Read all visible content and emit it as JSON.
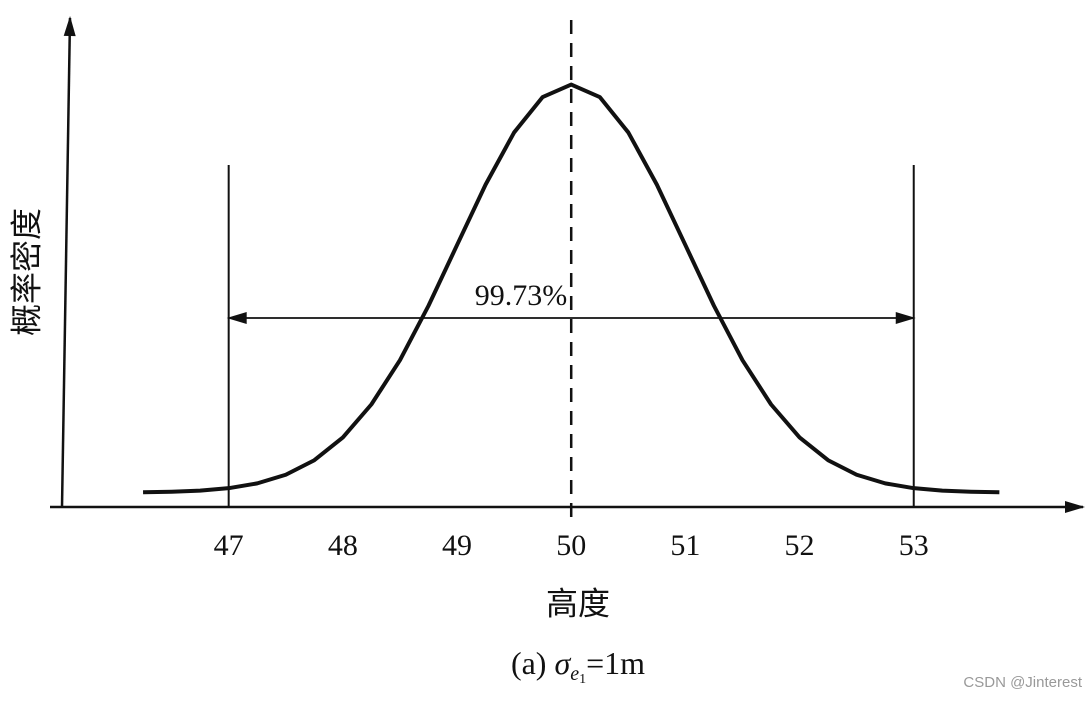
{
  "chart_data": {
    "type": "line",
    "x": [
      46.25,
      46.5,
      46.75,
      47,
      47.25,
      47.5,
      47.75,
      48,
      48.25,
      48.5,
      48.75,
      49,
      49.25,
      49.5,
      49.75,
      50,
      50.25,
      50.5,
      50.75,
      51,
      51.25,
      51.5,
      51.75,
      52,
      52.25,
      52.5,
      52.75,
      53,
      53.25,
      53.5,
      53.75
    ],
    "series": [
      {
        "color": "#111111",
        "values": [
          0.0004,
          0.0009,
          0.002,
          0.0044,
          0.0091,
          0.0175,
          0.0317,
          0.054,
          0.0863,
          0.1295,
          0.1827,
          0.242,
          0.3011,
          0.3521,
          0.3867,
          0.3989,
          0.3867,
          0.3521,
          0.3011,
          0.242,
          0.1827,
          0.1295,
          0.0863,
          0.054,
          0.0317,
          0.0175,
          0.0091,
          0.0044,
          0.002,
          0.0009,
          0.0004
        ]
      }
    ],
    "xlim": [
      45.4,
      54.5
    ],
    "ylim": [
      -0.014,
      0.462
    ],
    "xticks": [
      47,
      48,
      49,
      50,
      51,
      52,
      53
    ],
    "mean": 50,
    "limits": [
      47,
      53
    ],
    "interval_label": "99.73%",
    "x_label": "高度",
    "y_label": "概率密度",
    "caption": [
      "(a) ",
      "σ",
      "e",
      "1",
      "=1m"
    ],
    "watermark": "CSDN @Jinterest"
  }
}
